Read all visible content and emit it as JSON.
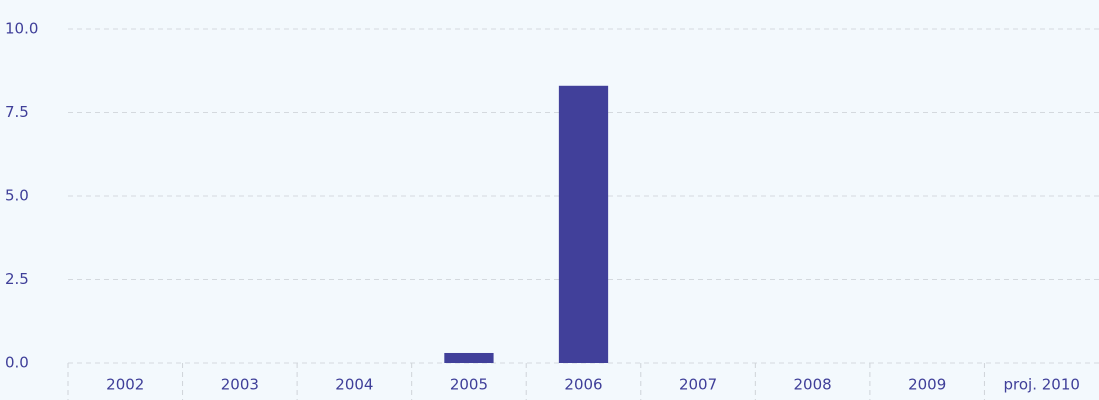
{
  "chart_data": {
    "type": "bar",
    "categories": [
      "2002",
      "2003",
      "2004",
      "2005",
      "2006",
      "2007",
      "2008",
      "2009",
      "proj. 2010"
    ],
    "values": [
      0,
      0,
      0,
      0.3,
      8.3,
      0,
      0,
      0,
      0
    ],
    "color": "#41409a",
    "ylim": [
      0,
      10
    ],
    "yticks": [
      {
        "value": 0,
        "label": "0.0"
      },
      {
        "value": 2.5,
        "label": "2.5"
      },
      {
        "value": 5,
        "label": "5.0"
      },
      {
        "value": 7.5,
        "label": "7.5"
      },
      {
        "value": 10,
        "label": "10.0"
      }
    ],
    "grid": true
  }
}
